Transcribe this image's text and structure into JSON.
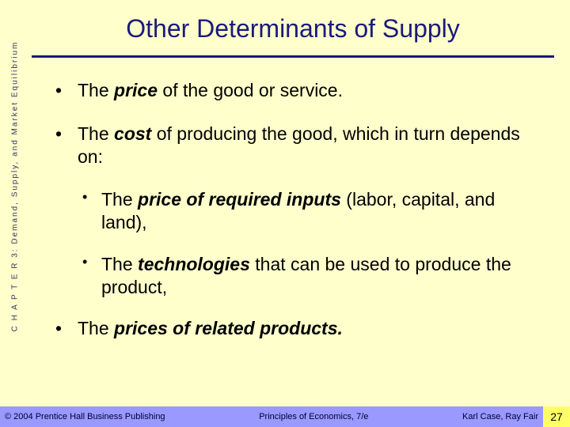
{
  "sidebar": {
    "chapter_label": "C H A P T E R  3:  Demand, Supply, and Market Equilibrium"
  },
  "title": "Other Determinants of Supply",
  "bullets": {
    "b1": {
      "prefix": "The ",
      "bold": "price",
      "suffix": " of the good or service."
    },
    "b2": {
      "prefix": "The ",
      "bold": "cost",
      "suffix": " of producing the good, which in turn depends on:"
    },
    "b2a": {
      "prefix": "The ",
      "bold": "price of required inputs",
      "suffix": " (labor, capital, and land),"
    },
    "b2b": {
      "prefix": "The ",
      "bold": "technologies",
      "suffix": " that can be used to produce the product,"
    },
    "b3": {
      "prefix": "The ",
      "bold": "prices of related products.",
      "suffix": ""
    }
  },
  "footer": {
    "left": "© 2004 Prentice Hall Business Publishing",
    "center": "Principles of Economics, 7/e",
    "right": "Karl Case, Ray Fair",
    "page": "27"
  },
  "colors": {
    "background": "#ffffcc",
    "title_color": "#1a1a7a",
    "rule_color": "#1a1a7a",
    "footer_bg": "#9999ff",
    "pagebox_bg": "#ffff66",
    "sidebar_text": "#333366"
  }
}
